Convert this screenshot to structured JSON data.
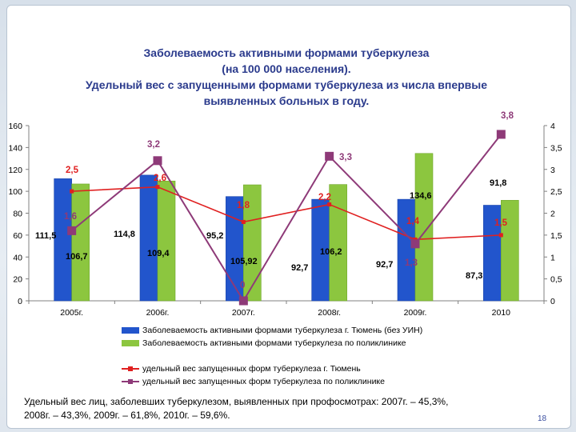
{
  "slide": {
    "title_lines": [
      "Заболеваемость активными формами туберкулеза",
      "(на 100 000 населения).",
      "Удельный вес с запущенными формами туберкулеза из числа впервые",
      "выявленных больных в году."
    ],
    "footnote_lines": [
      "Удельный вес лиц, заболевших туберкулезом, выявленных при профосмотрах: 2007г. – 45,3%,",
      "2008г. – 43,3%, 2009г. – 61,8%, 2010г. – 59,6%."
    ],
    "page_number": "18"
  },
  "legend": {
    "items": [
      "Заболеваемость активными формами туберкулеза г. Тюмень (без УИН)",
      "Заболеваемость активными формами туберкулеза по поликлинике",
      "удельный вес запущенных форм туберкулеза  г. Тюмень",
      "удельный вес запущенных форм туберкулеза по поликлинике"
    ]
  },
  "chart_data": {
    "type": "bar",
    "categories": [
      "2005г.",
      "2006г.",
      "2007г.",
      "2008г.",
      "2009г.",
      "2010"
    ],
    "y_left": {
      "ylim": [
        0,
        160
      ],
      "ticks": [
        "0",
        "20",
        "40",
        "60",
        "80",
        "100",
        "120",
        "140",
        "160"
      ]
    },
    "y_right": {
      "ylim": [
        0,
        4
      ],
      "ticks": [
        "0",
        "0,5",
        "1",
        "1,5",
        "2",
        "2,5",
        "3",
        "3,5",
        "4"
      ]
    },
    "grid": false,
    "legend_position": "bottom",
    "series": [
      {
        "name": "Заболеваемость активными формами туберкулеза г. Тюмень (без УИН)",
        "kind": "bar",
        "axis": "left",
        "color": "#2255cc",
        "values": [
          111.5,
          114.8,
          95.2,
          92.7,
          92.7,
          87.3
        ],
        "labels": [
          "111,5",
          "114,8",
          "95,2",
          "92,7",
          "92,7",
          "87,3"
        ]
      },
      {
        "name": "Заболеваемость активными формами туберкулеза по поликлинике",
        "kind": "bar",
        "axis": "left",
        "color": "#8cc63f",
        "values": [
          106.7,
          109.4,
          105.92,
          106.2,
          134.6,
          91.8
        ],
        "labels": [
          "106,7",
          "109,4",
          "105,92",
          "106,2",
          "134,6",
          "91,8"
        ]
      },
      {
        "name": "удельный вес запущенных форм туберкулеза  г. Тюмень",
        "kind": "line",
        "axis": "right",
        "color": "#e02020",
        "values": [
          2.5,
          2.6,
          1.8,
          2.2,
          1.4,
          1.5
        ],
        "labels": [
          "2,5",
          "2,6",
          "1,8",
          "2,2",
          "1,4",
          "1,5"
        ]
      },
      {
        "name": "удельный вес запущенных форм туберкулеза по поликлинике",
        "kind": "line",
        "axis": "right",
        "color": "#8e3a78",
        "values": [
          1.6,
          3.2,
          0,
          3.3,
          1.3,
          3.8
        ],
        "labels": [
          "1,6",
          "3,2",
          "0",
          "3,3",
          "1,3",
          "3,8"
        ]
      }
    ]
  }
}
